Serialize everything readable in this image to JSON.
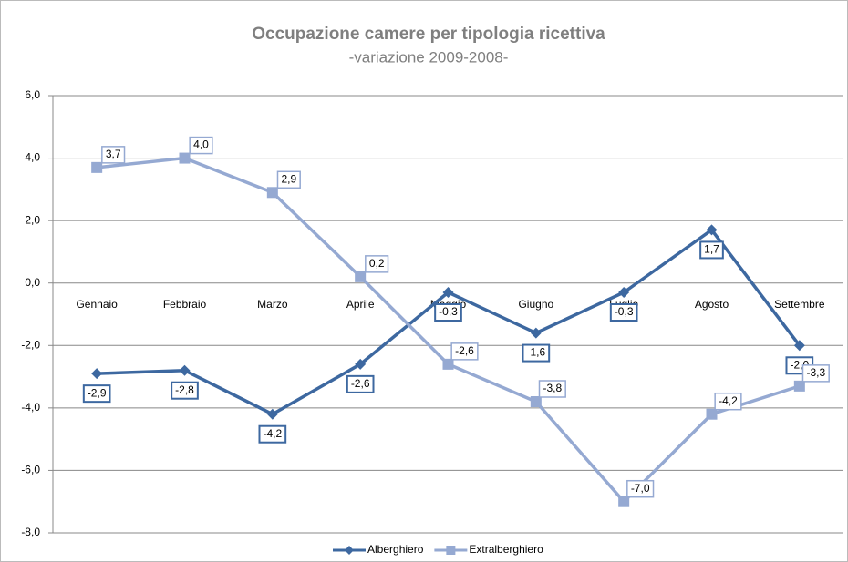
{
  "chart_data": {
    "type": "line",
    "title": "Occupazione camere per tipologia ricettiva",
    "subtitle": "-variazione 2009-2008-",
    "categories": [
      "Gennaio",
      "Febbraio",
      "Marzo",
      "Aprile",
      "Maggio",
      "Giugno",
      "Luglio",
      "Agosto",
      "Settembre"
    ],
    "series": [
      {
        "name": "Alberghiero",
        "color": "#3d68a0",
        "marker": "diamond",
        "values": [
          -2.9,
          -2.8,
          -4.2,
          -2.6,
          -0.3,
          -1.6,
          -0.3,
          1.7,
          -2.0
        ],
        "value_labels": [
          "-2,9",
          "-2,8",
          "-4,2",
          "-2,6",
          "-0,3",
          "-1,6",
          "-0,3",
          "1,7",
          "-2,0"
        ]
      },
      {
        "name": "Extralberghiero",
        "color": "#95a9d2",
        "marker": "square",
        "values": [
          3.7,
          4.0,
          2.9,
          0.2,
          -2.6,
          -3.8,
          -7.0,
          -4.2,
          -3.3
        ],
        "value_labels": [
          "3,7",
          "4,0",
          "2,9",
          "0,2",
          "-2,6",
          "-3,8",
          "-7,0",
          "-4,2",
          "-3,3"
        ]
      }
    ],
    "ylim": [
      -8,
      6
    ],
    "yticks": [
      {
        "value": -8,
        "label": "-8,0"
      },
      {
        "value": -6,
        "label": "-6,0"
      },
      {
        "value": -4,
        "label": "-4,0"
      },
      {
        "value": -2,
        "label": "-2,0"
      },
      {
        "value": 0,
        "label": "0,0"
      },
      {
        "value": 2,
        "label": "2,0"
      },
      {
        "value": 4,
        "label": "4,0"
      },
      {
        "value": 6,
        "label": "6,0"
      }
    ],
    "grid": true,
    "legend": "bottom"
  }
}
